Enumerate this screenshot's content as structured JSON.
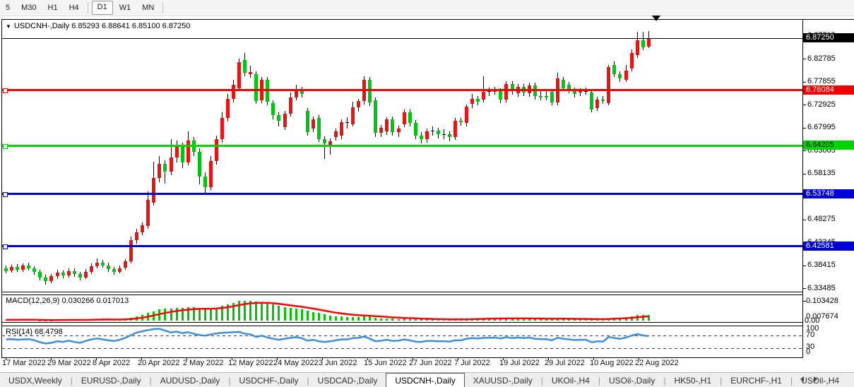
{
  "toolbar": {
    "timeframes": [
      "5",
      "M30",
      "H1",
      "H4",
      "D1",
      "W1",
      "MN"
    ],
    "active_timeframe": "D1"
  },
  "window": {
    "title": "USDCNH-,Daily  6.85293 6.88641 6.85100 6.87250"
  },
  "indicators": {
    "macd_label": "MACD(12,26,9) 0.030266 0.017013",
    "rsi_label": "RSI(14) 68.4798"
  },
  "tabs": {
    "items": [
      "USDX,Weekly",
      "EURUSD-,Daily",
      "AUDUSD-,Daily",
      "USDCHF-,Daily",
      "USDCAD-,Daily",
      "USDCNH-,Daily",
      "XAUUSD-,Daily",
      "UKOil-,H4",
      "USOil-,Daily",
      "HK50-,H1",
      "EURCHF-,H1",
      "USOil-,H4"
    ],
    "active": "USDCNH-,Daily"
  },
  "chart_data": {
    "type": "candlestick",
    "symbol": "USDCNH-,Daily",
    "ohlc_display": {
      "open": "6.85293",
      "high": "6.88641",
      "low": "6.85100",
      "close": "6.87250"
    },
    "current_price": 6.8725,
    "y_axis": {
      "gridlines": [
        6.87715,
        6.82785,
        6.77855,
        6.72925,
        6.67995,
        6.63065,
        6.58135,
        6.53205,
        6.48275,
        6.43345,
        6.38415,
        6.33485
      ],
      "step": 0.0493
    },
    "horizontal_lines": [
      {
        "price": 6.76084,
        "color": "#ee0000",
        "label": "6.76084"
      },
      {
        "price": 6.64205,
        "color": "#00d400",
        "label": "6.64205"
      },
      {
        "price": 6.53748,
        "color": "#0000d4",
        "label": "6.53748"
      },
      {
        "price": 6.42581,
        "color": "#0000d4",
        "label": "6.42581"
      }
    ],
    "x_labels": [
      "17 Mar 2022",
      "29 Mar 2022",
      "8 Apr 2022",
      "20 Apr 2022",
      "2 May 2022",
      "12 May 2022",
      "24 May 2022",
      "3 Jun 2022",
      "15 Jun 2022",
      "27 Jun 2022",
      "7 Jul 2022",
      "19 Jul 2022",
      "29 Jul 2022",
      "10 Aug 2022",
      "22 Aug 2022"
    ],
    "colors": {
      "up": "#e81414",
      "down": "#00c414",
      "wick": "#000000",
      "macd_hist": "#00c400",
      "macd_signal": "#ff0000",
      "rsi_line": "#3f8edc"
    },
    "marker": {
      "shape": "down-arrow",
      "color": "#000000",
      "index": 114.6
    },
    "candles": [
      [
        6.378,
        6.384,
        6.366,
        6.372
      ],
      [
        6.372,
        6.385,
        6.368,
        6.38
      ],
      [
        6.38,
        6.386,
        6.37,
        6.374
      ],
      [
        6.374,
        6.388,
        6.37,
        6.383
      ],
      [
        6.383,
        6.389,
        6.372,
        6.377
      ],
      [
        6.377,
        6.382,
        6.364,
        6.37
      ],
      [
        6.37,
        6.375,
        6.352,
        6.358
      ],
      [
        6.358,
        6.364,
        6.342,
        6.35
      ],
      [
        6.35,
        6.366,
        6.345,
        6.36
      ],
      [
        6.36,
        6.374,
        6.355,
        6.368
      ],
      [
        6.368,
        6.373,
        6.356,
        6.362
      ],
      [
        6.362,
        6.378,
        6.358,
        6.372
      ],
      [
        6.372,
        6.377,
        6.359,
        6.365
      ],
      [
        6.365,
        6.37,
        6.351,
        6.358
      ],
      [
        6.358,
        6.376,
        6.354,
        6.37
      ],
      [
        6.37,
        6.388,
        6.366,
        6.382
      ],
      [
        6.382,
        6.398,
        6.378,
        6.39
      ],
      [
        6.39,
        6.395,
        6.378,
        6.384
      ],
      [
        6.384,
        6.39,
        6.37,
        6.376
      ],
      [
        6.376,
        6.381,
        6.363,
        6.37
      ],
      [
        6.37,
        6.384,
        6.366,
        6.378
      ],
      [
        6.378,
        6.397,
        6.374,
        6.392
      ],
      [
        6.392,
        6.445,
        6.388,
        6.438
      ],
      [
        6.438,
        6.462,
        6.43,
        6.455
      ],
      [
        6.455,
        6.476,
        6.448,
        6.47
      ],
      [
        6.468,
        6.543,
        6.462,
        6.524
      ],
      [
        6.518,
        6.607,
        6.512,
        6.571
      ],
      [
        6.571,
        6.618,
        6.562,
        6.602
      ],
      [
        6.602,
        6.61,
        6.56,
        6.585
      ],
      [
        6.585,
        6.655,
        6.578,
        6.615
      ],
      [
        6.615,
        6.652,
        6.605,
        6.64
      ],
      [
        6.64,
        6.648,
        6.592,
        6.605
      ],
      [
        6.605,
        6.672,
        6.598,
        6.652
      ],
      [
        6.652,
        6.66,
        6.618,
        6.628
      ],
      [
        6.628,
        6.635,
        6.558,
        6.575
      ],
      [
        6.575,
        6.583,
        6.54,
        6.552
      ],
      [
        6.552,
        6.618,
        6.546,
        6.608
      ],
      [
        6.608,
        6.662,
        6.6,
        6.655
      ],
      [
        6.655,
        6.712,
        6.648,
        6.7
      ],
      [
        6.7,
        6.752,
        6.693,
        6.742
      ],
      [
        6.742,
        6.782,
        6.734,
        6.772
      ],
      [
        6.764,
        6.828,
        6.758,
        6.82
      ],
      [
        6.825,
        6.84,
        6.79,
        6.797
      ],
      [
        6.794,
        6.812,
        6.786,
        6.799
      ],
      [
        6.794,
        6.8,
        6.73,
        6.736
      ],
      [
        6.738,
        6.788,
        6.732,
        6.782
      ],
      [
        6.783,
        6.789,
        6.728,
        6.736
      ],
      [
        6.733,
        6.739,
        6.698,
        6.706
      ],
      [
        6.706,
        6.712,
        6.682,
        6.694
      ],
      [
        6.68,
        6.716,
        6.674,
        6.71
      ],
      [
        6.71,
        6.755,
        6.704,
        6.745
      ],
      [
        6.745,
        6.772,
        6.738,
        6.762
      ],
      [
        6.762,
        6.768,
        6.744,
        6.752
      ],
      [
        6.715,
        6.722,
        6.662,
        6.67
      ],
      [
        6.677,
        6.703,
        6.67,
        6.698
      ],
      [
        6.7,
        6.706,
        6.648,
        6.655
      ],
      [
        6.655,
        6.661,
        6.612,
        6.645
      ],
      [
        6.64,
        6.656,
        6.622,
        6.65
      ],
      [
        6.66,
        6.678,
        6.652,
        6.672
      ],
      [
        6.662,
        6.697,
        6.655,
        6.692
      ],
      [
        6.69,
        6.702,
        6.678,
        6.691
      ],
      [
        6.687,
        6.736,
        6.682,
        6.723
      ],
      [
        6.723,
        6.742,
        6.714,
        6.737
      ],
      [
        6.737,
        6.79,
        6.73,
        6.782
      ],
      [
        6.782,
        6.788,
        6.726,
        6.734
      ],
      [
        6.739,
        6.745,
        6.66,
        6.668
      ],
      [
        6.668,
        6.686,
        6.66,
        6.68
      ],
      [
        6.671,
        6.702,
        6.664,
        6.697
      ],
      [
        6.697,
        6.703,
        6.662,
        6.67
      ],
      [
        6.67,
        6.684,
        6.66,
        6.678
      ],
      [
        6.687,
        6.718,
        6.68,
        6.713
      ],
      [
        6.713,
        6.719,
        6.682,
        6.69
      ],
      [
        6.69,
        6.696,
        6.655,
        6.662
      ],
      [
        6.662,
        6.67,
        6.646,
        6.655
      ],
      [
        6.655,
        6.678,
        6.648,
        6.672
      ],
      [
        6.672,
        6.682,
        6.662,
        6.673
      ],
      [
        6.673,
        6.679,
        6.656,
        6.665
      ],
      [
        6.665,
        6.676,
        6.655,
        6.666
      ],
      [
        6.666,
        6.672,
        6.65,
        6.66
      ],
      [
        6.66,
        6.7,
        6.654,
        6.695
      ],
      [
        6.695,
        6.701,
        6.684,
        6.692
      ],
      [
        6.689,
        6.73,
        6.682,
        6.725
      ],
      [
        6.73,
        6.752,
        6.722,
        6.742
      ],
      [
        6.742,
        6.748,
        6.728,
        6.736
      ],
      [
        6.74,
        6.79,
        6.734,
        6.757
      ],
      [
        6.757,
        6.766,
        6.748,
        6.758
      ],
      [
        6.757,
        6.768,
        6.75,
        6.762
      ],
      [
        6.758,
        6.764,
        6.732,
        6.74
      ],
      [
        6.74,
        6.78,
        6.734,
        6.774
      ],
      [
        6.774,
        6.78,
        6.75,
        6.758
      ],
      [
        6.753,
        6.773,
        6.746,
        6.767
      ],
      [
        6.767,
        6.773,
        6.748,
        6.755
      ],
      [
        6.753,
        6.776,
        6.746,
        6.77
      ],
      [
        6.77,
        6.776,
        6.74,
        6.747
      ],
      [
        6.747,
        6.758,
        6.738,
        6.744
      ],
      [
        6.748,
        6.758,
        6.738,
        6.745
      ],
      [
        6.757,
        6.762,
        6.728,
        6.734
      ],
      [
        6.734,
        6.797,
        6.728,
        6.786
      ],
      [
        6.782,
        6.788,
        6.758,
        6.764
      ],
      [
        6.772,
        6.778,
        6.754,
        6.76
      ],
      [
        6.76,
        6.766,
        6.744,
        6.752
      ],
      [
        6.755,
        6.764,
        6.748,
        6.758
      ],
      [
        6.758,
        6.766,
        6.75,
        6.757
      ],
      [
        6.755,
        6.761,
        6.712,
        6.718
      ],
      [
        6.722,
        6.746,
        6.716,
        6.74
      ],
      [
        6.74,
        6.747,
        6.73,
        6.736
      ],
      [
        6.733,
        6.815,
        6.728,
        6.81
      ],
      [
        6.815,
        6.822,
        6.788,
        6.794
      ],
      [
        6.794,
        6.8,
        6.778,
        6.786
      ],
      [
        6.783,
        6.814,
        6.778,
        6.802
      ],
      [
        6.806,
        6.848,
        6.8,
        6.84
      ],
      [
        6.835,
        6.885,
        6.83,
        6.867
      ],
      [
        6.867,
        6.885,
        6.846,
        6.852
      ],
      [
        6.85293,
        6.88641,
        6.851,
        6.8725
      ]
    ],
    "macd": {
      "params": "12,26,9",
      "main_latest": 0.030266,
      "signal_latest": 0.017013,
      "axis_labels": [
        "0.103428",
        "0.007674",
        "0.00"
      ],
      "histogram": [
        0.004,
        0.005,
        0.004,
        0.005,
        0.005,
        0.004,
        0.002,
        0.001,
        0.002,
        0.003,
        0.004,
        0.005,
        0.004,
        0.003,
        0.004,
        0.006,
        0.008,
        0.008,
        0.006,
        0.005,
        0.006,
        0.009,
        0.015,
        0.022,
        0.03,
        0.04,
        0.05,
        0.058,
        0.062,
        0.064,
        0.067,
        0.067,
        0.07,
        0.07,
        0.066,
        0.062,
        0.063,
        0.068,
        0.076,
        0.085,
        0.094,
        0.102,
        0.105,
        0.104,
        0.099,
        0.097,
        0.091,
        0.084,
        0.076,
        0.07,
        0.066,
        0.063,
        0.059,
        0.051,
        0.046,
        0.039,
        0.032,
        0.027,
        0.024,
        0.022,
        0.02,
        0.02,
        0.02,
        0.022,
        0.021,
        0.016,
        0.013,
        0.012,
        0.01,
        0.009,
        0.01,
        0.009,
        0.007,
        0.006,
        0.006,
        0.006,
        0.005,
        0.005,
        0.005,
        0.006,
        0.006,
        0.008,
        0.01,
        0.011,
        0.012,
        0.013,
        0.013,
        0.012,
        0.013,
        0.012,
        0.012,
        0.011,
        0.011,
        0.01,
        0.009,
        0.009,
        0.008,
        0.01,
        0.01,
        0.009,
        0.008,
        0.008,
        0.008,
        0.006,
        0.006,
        0.006,
        0.012,
        0.015,
        0.016,
        0.018,
        0.023,
        0.028,
        0.03,
        0.0303
      ]
    },
    "rsi": {
      "period": 14,
      "latest": 68.4798,
      "levels": [
        100,
        70,
        30,
        0
      ],
      "values": [
        58,
        59,
        57,
        58,
        59,
        55,
        49,
        45,
        47,
        52,
        50,
        54,
        50,
        47,
        53,
        58,
        61,
        58,
        55,
        53,
        57,
        63,
        72,
        80,
        84,
        88,
        91,
        92,
        86,
        80,
        83,
        78,
        81,
        76,
        72,
        70,
        74,
        77,
        79,
        80,
        81,
        82,
        76,
        74,
        66,
        70,
        64,
        60,
        57,
        60,
        63,
        65,
        62,
        54,
        57,
        52,
        50,
        52,
        55,
        58,
        58,
        62,
        63,
        67,
        60,
        52,
        54,
        57,
        53,
        54,
        58,
        55,
        51,
        50,
        53,
        53,
        52,
        52,
        51,
        55,
        55,
        60,
        62,
        61,
        63,
        63,
        64,
        61,
        65,
        62,
        64,
        62,
        64,
        60,
        59,
        59,
        55,
        63,
        60,
        58,
        56,
        57,
        57,
        49,
        52,
        51,
        66,
        62,
        60,
        64,
        70,
        75,
        71,
        68.4798
      ]
    }
  }
}
